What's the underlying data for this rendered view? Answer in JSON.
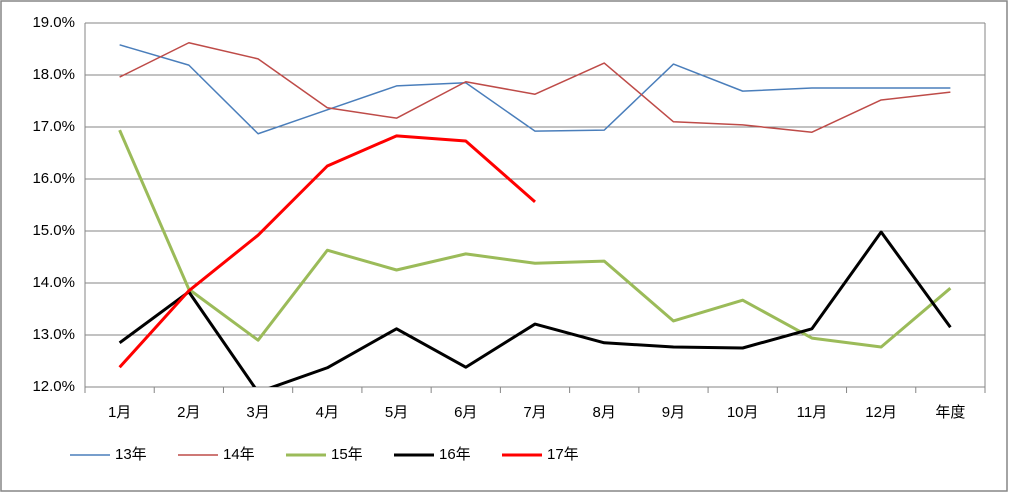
{
  "chart_data": {
    "type": "line",
    "categories": [
      "1月",
      "2月",
      "3月",
      "4月",
      "5月",
      "6月",
      "7月",
      "8月",
      "9月",
      "10月",
      "11月",
      "12月",
      "年度"
    ],
    "series": [
      {
        "name": "13年",
        "color": "#4a7ebb",
        "values": [
          18.58,
          18.19,
          16.87,
          17.33,
          17.79,
          17.85,
          16.92,
          16.94,
          18.21,
          17.69,
          17.75,
          17.75,
          17.75
        ]
      },
      {
        "name": "14年",
        "color": "#be4b48",
        "values": [
          17.96,
          18.62,
          18.31,
          17.37,
          17.17,
          17.87,
          17.63,
          18.23,
          17.1,
          17.04,
          16.9,
          17.52,
          17.67
        ]
      },
      {
        "name": "15年",
        "color": "#9bbb59",
        "values": [
          16.94,
          13.88,
          12.9,
          14.63,
          14.25,
          14.56,
          14.38,
          14.42,
          13.27,
          13.67,
          12.94,
          12.77,
          13.9
        ]
      },
      {
        "name": "16年",
        "color": "#000000",
        "values": [
          12.85,
          13.83,
          11.9,
          12.37,
          13.12,
          12.38,
          13.21,
          12.85,
          12.77,
          12.75,
          13.12,
          14.98,
          13.15
        ]
      },
      {
        "name": "17年",
        "color": "#ff0000",
        "values": [
          12.38,
          13.85,
          14.92,
          16.25,
          16.83,
          16.73,
          15.56,
          null,
          null,
          null,
          null,
          null,
          null
        ]
      }
    ],
    "ylim": [
      12,
      19
    ],
    "yticks": [
      {
        "value": 12,
        "label": "12.0%"
      },
      {
        "value": 13,
        "label": "13.0%"
      },
      {
        "value": 14,
        "label": "14.0%"
      },
      {
        "value": 15,
        "label": "15.0%"
      },
      {
        "value": 16,
        "label": "16.0%"
      },
      {
        "value": 17,
        "label": "17.0%"
      },
      {
        "value": 18,
        "label": "18.0%"
      },
      {
        "value": 19,
        "label": "19.0%"
      }
    ],
    "grid": true,
    "legend": "bottom"
  }
}
